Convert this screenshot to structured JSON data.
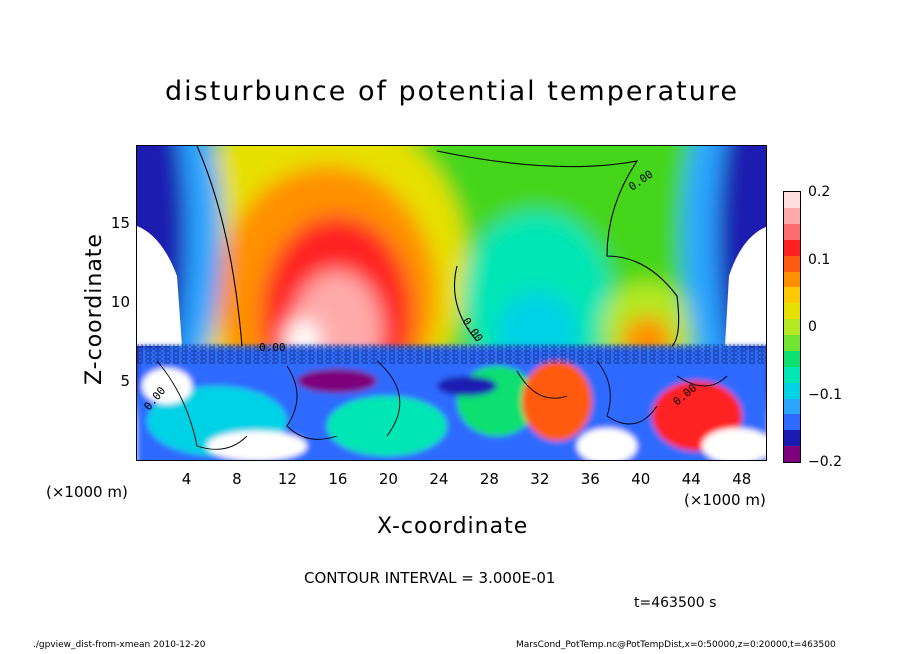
{
  "chart_data": {
    "type": "heatmap",
    "title": "disturbunce of potential temperature",
    "xlabel": "X-coordinate",
    "ylabel": "Z-coordinate",
    "x_unit": "(×1000 m)",
    "z_unit": "(×1000 m)",
    "xlim": [
      0,
      50
    ],
    "ylim": [
      0,
      20
    ],
    "x_ticks": [
      "4",
      "8",
      "12",
      "16",
      "20",
      "24",
      "28",
      "32",
      "36",
      "40",
      "44",
      "48"
    ],
    "y_ticks": [
      "5",
      "10",
      "15"
    ],
    "colorbar": {
      "range": [
        -0.2,
        0.2
      ],
      "tick_labels": [
        "0.2",
        "0.1",
        "0",
        "−0.1",
        "−0.2"
      ],
      "colors": [
        "#7d007d",
        "#1a1ab0",
        "#2f6bff",
        "#2aa6ff",
        "#00d2e6",
        "#00e6b4",
        "#10e070",
        "#70e430",
        "#b4e820",
        "#e6e000",
        "#ffc800",
        "#ff9000",
        "#ff5a10",
        "#ff2020",
        "#ff6e6e",
        "#ffaaaa",
        "#ffdede"
      ]
    },
    "contour_labels": [
      "0.00",
      "0.00",
      "0.00",
      "0.00",
      "0.00"
    ],
    "contour_interval": "CONTOUR INTERVAL = 3.000E-01",
    "time_label": "t=463500 s"
  },
  "footer": {
    "left": "./gpview_dist-from-xmean  2010-12-20",
    "right": "MarsCond_PotTemp.nc@PotTempDist,x=0:50000,z=0:20000,t=463500"
  }
}
